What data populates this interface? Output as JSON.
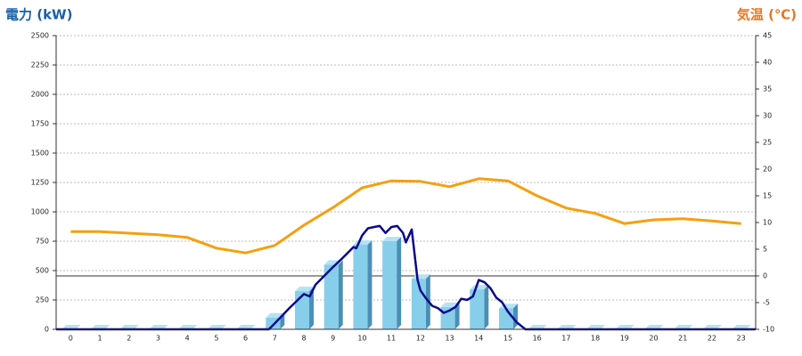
{
  "chart_data": {
    "type": "combo",
    "y_title": "電力 (kW)",
    "y2_title": "気温 (℃)",
    "categories": [
      "0",
      "1",
      "2",
      "3",
      "4",
      "5",
      "6",
      "7",
      "8",
      "9",
      "10",
      "11",
      "12",
      "13",
      "14",
      "15",
      "16",
      "17",
      "18",
      "19",
      "20",
      "21",
      "22",
      "23"
    ],
    "ylim": [
      0,
      2500
    ],
    "yticks": [
      0,
      250,
      500,
      750,
      1000,
      1250,
      1500,
      1750,
      2000,
      2250,
      2500
    ],
    "y2lim": [
      -10,
      45
    ],
    "y2ticks": [
      -10,
      -5,
      0,
      5,
      10,
      15,
      20,
      25,
      30,
      35,
      40,
      45
    ],
    "grid": true,
    "series": [
      {
        "type": "bar",
        "color": "#87ceeb",
        "values": [
          0,
          0,
          0,
          0,
          0,
          0,
          0,
          100,
          325,
          550,
          720,
          750,
          430,
          190,
          340,
          180,
          0,
          0,
          0,
          0,
          0,
          0,
          0,
          0
        ]
      },
      {
        "type": "line",
        "axis": "y2",
        "color": "#f5a00f",
        "values": [
          8.3,
          8.3,
          8.0,
          7.7,
          7.2,
          5.2,
          4.3,
          5.7,
          9.5,
          12.8,
          16.5,
          17.8,
          17.7,
          16.7,
          18.2,
          17.8,
          15.0,
          12.7,
          11.7,
          9.8,
          10.5,
          10.7,
          10.3,
          9.8
        ]
      },
      {
        "type": "line",
        "color": "#0a0a8c",
        "x": [
          -0.5,
          6.8,
          7,
          7.5,
          8,
          8.2,
          8.4,
          9,
          9.3,
          9.5,
          9.7,
          9.8,
          10,
          10.2,
          10.4,
          10.6,
          10.8,
          11,
          11.2,
          11.4,
          11.5,
          11.7,
          11.9,
          12,
          12.2,
          12.4,
          12.6,
          12.8,
          13,
          13.2,
          13.4,
          13.6,
          13.8,
          14,
          14.2,
          14.4,
          14.6,
          14.8,
          15,
          15.3,
          15.6,
          23.5
        ],
        "values": [
          0,
          0,
          50,
          180,
          300,
          280,
          380,
          530,
          600,
          650,
          700,
          690,
          800,
          860,
          870,
          880,
          820,
          870,
          880,
          820,
          740,
          850,
          420,
          330,
          260,
          200,
          180,
          140,
          160,
          190,
          260,
          250,
          280,
          420,
          400,
          350,
          270,
          230,
          150,
          60,
          0,
          0
        ]
      }
    ]
  }
}
